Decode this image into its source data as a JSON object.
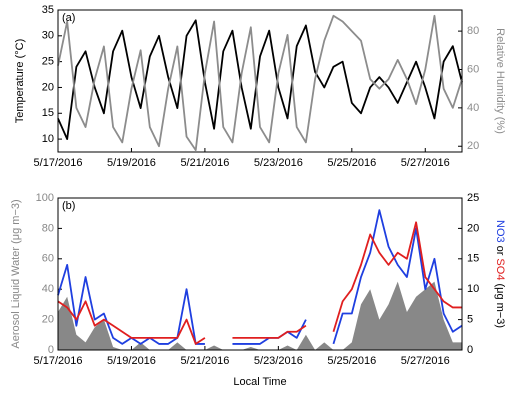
{
  "chart_data": [
    {
      "type": "line",
      "panel_label": "(a)",
      "ylabel": "Temperature (°C)",
      "y2label": "Relative Humidity (%)",
      "x": [
        "2016-05-17T00:00",
        "2016-05-17T06:00",
        "2016-05-17T12:00",
        "2016-05-17T18:00",
        "2016-05-18T00:00",
        "2016-05-18T06:00",
        "2016-05-18T12:00",
        "2016-05-18T18:00",
        "2016-05-19T00:00",
        "2016-05-19T06:00",
        "2016-05-19T12:00",
        "2016-05-19T18:00",
        "2016-05-20T00:00",
        "2016-05-20T06:00",
        "2016-05-20T12:00",
        "2016-05-20T18:00",
        "2016-05-21T00:00",
        "2016-05-21T06:00",
        "2016-05-21T12:00",
        "2016-05-21T18:00",
        "2016-05-22T00:00",
        "2016-05-22T06:00",
        "2016-05-22T12:00",
        "2016-05-22T18:00",
        "2016-05-23T00:00",
        "2016-05-23T06:00",
        "2016-05-23T12:00",
        "2016-05-23T18:00",
        "2016-05-24T00:00",
        "2016-05-24T06:00",
        "2016-05-24T12:00",
        "2016-05-24T18:00",
        "2016-05-25T00:00",
        "2016-05-25T06:00",
        "2016-05-25T12:00",
        "2016-05-25T18:00",
        "2016-05-26T00:00",
        "2016-05-26T06:00",
        "2016-05-26T12:00",
        "2016-05-26T18:00",
        "2016-05-27T00:00",
        "2016-05-27T06:00",
        "2016-05-27T12:00",
        "2016-05-27T18:00",
        "2016-05-28T00:00"
      ],
      "series": [
        {
          "name": "Temperature",
          "color": "#000000",
          "axis": "y",
          "values": [
            14,
            10,
            24,
            27,
            20,
            15,
            27,
            31,
            22,
            16,
            26,
            30,
            22,
            16,
            30,
            33,
            21,
            12,
            27,
            31,
            20,
            12,
            26,
            31,
            20,
            14,
            28,
            32,
            23,
            20,
            24,
            25,
            17,
            15,
            20,
            22,
            20,
            17,
            21,
            25,
            20,
            14,
            25,
            28,
            21
          ]
        },
        {
          "name": "Relative Humidity",
          "color": "#8c8c8c",
          "axis": "y2",
          "values": [
            62,
            85,
            40,
            30,
            55,
            72,
            30,
            22,
            50,
            70,
            30,
            20,
            50,
            72,
            25,
            18,
            58,
            85,
            30,
            22,
            58,
            82,
            30,
            22,
            58,
            78,
            30,
            22,
            55,
            75,
            88,
            85,
            80,
            75,
            55,
            50,
            55,
            65,
            55,
            42,
            60,
            88,
            50,
            40,
            55
          ]
        }
      ],
      "xlim": [
        "2016-05-17T00:00",
        "2016-05-28T00:00"
      ],
      "xticks": [
        {
          "value": "2016-05-17T00:00",
          "label": "5/17/2016"
        },
        {
          "value": "2016-05-19T00:00",
          "label": "5/19/2016"
        },
        {
          "value": "2016-05-21T00:00",
          "label": "5/21/2016"
        },
        {
          "value": "2016-05-23T00:00",
          "label": "5/23/2016"
        },
        {
          "value": "2016-05-25T00:00",
          "label": "5/25/2016"
        },
        {
          "value": "2016-05-27T00:00",
          "label": "5/27/2016"
        }
      ],
      "ylim": [
        7.5,
        35
      ],
      "yticks": [
        10,
        15,
        20,
        25,
        30,
        35
      ],
      "y2lim": [
        17,
        91
      ],
      "y2ticks": [
        20,
        40,
        60,
        80
      ]
    },
    {
      "type": "line",
      "panel_label": "(b)",
      "ylabel": "Aerosol Liquid Water (μg m−3)",
      "xlabel": "Local Time",
      "y2label_or": "or",
      "y2label_unit": "(μg m−3)",
      "x": [
        "2016-05-17T00:00",
        "2016-05-17T06:00",
        "2016-05-17T12:00",
        "2016-05-17T18:00",
        "2016-05-18T00:00",
        "2016-05-18T06:00",
        "2016-05-18T12:00",
        "2016-05-18T18:00",
        "2016-05-19T00:00",
        "2016-05-19T06:00",
        "2016-05-19T12:00",
        "2016-05-19T18:00",
        "2016-05-20T00:00",
        "2016-05-20T06:00",
        "2016-05-20T12:00",
        "2016-05-20T18:00",
        "2016-05-21T00:00",
        "2016-05-21T06:00",
        "2016-05-21T12:00",
        "2016-05-21T18:00",
        "2016-05-22T00:00",
        "2016-05-22T06:00",
        "2016-05-22T12:00",
        "2016-05-22T18:00",
        "2016-05-23T00:00",
        "2016-05-23T06:00",
        "2016-05-23T12:00",
        "2016-05-23T18:00",
        "2016-05-24T00:00",
        "2016-05-24T06:00",
        "2016-05-24T12:00",
        "2016-05-24T18:00",
        "2016-05-25T00:00",
        "2016-05-25T06:00",
        "2016-05-25T12:00",
        "2016-05-25T18:00",
        "2016-05-26T00:00",
        "2016-05-26T06:00",
        "2016-05-26T12:00",
        "2016-05-26T18:00",
        "2016-05-27T00:00",
        "2016-05-27T06:00",
        "2016-05-27T12:00",
        "2016-05-27T18:00",
        "2016-05-28T00:00"
      ],
      "series": [
        {
          "name": "Aerosol Liquid Water",
          "color": "#888888",
          "axis": "y",
          "area": true,
          "values": [
            25,
            35,
            10,
            5,
            15,
            20,
            2,
            0,
            0,
            5,
            0,
            0,
            0,
            5,
            0,
            0,
            0,
            3,
            0,
            0,
            0,
            2,
            0,
            0,
            0,
            3,
            0,
            10,
            0,
            5,
            0,
            0,
            5,
            30,
            40,
            20,
            30,
            45,
            25,
            35,
            40,
            45,
            20,
            5,
            5
          ]
        },
        {
          "name": "NO3",
          "color": "#1f3fe0",
          "axis": "y2",
          "values": [
            9,
            14,
            4,
            12,
            5,
            6,
            2,
            1,
            2,
            1,
            2,
            1,
            1,
            2,
            10,
            1,
            1,
            null,
            null,
            1,
            1,
            1,
            1,
            2,
            2,
            3,
            2,
            5,
            null,
            null,
            1,
            6,
            6,
            12,
            16,
            23,
            17,
            14,
            12,
            20,
            10,
            15,
            6,
            3,
            4
          ]
        },
        {
          "name": "SO4",
          "color": "#e01f1f",
          "axis": "y2",
          "values": [
            8,
            7,
            5,
            8,
            4,
            5,
            4,
            3,
            2,
            2,
            2,
            2,
            2,
            2,
            5,
            1,
            2,
            null,
            null,
            2,
            2,
            2,
            2,
            2,
            2,
            3,
            3,
            4,
            null,
            null,
            3,
            8,
            10,
            14,
            19,
            16,
            14,
            16,
            15,
            21,
            12,
            10,
            8,
            7,
            7
          ]
        }
      ],
      "xlim": [
        "2016-05-17T00:00",
        "2016-05-28T00:00"
      ],
      "xticks": [
        {
          "value": "2016-05-17T00:00",
          "label": "5/17/2016"
        },
        {
          "value": "2016-05-19T00:00",
          "label": "5/19/2016"
        },
        {
          "value": "2016-05-21T00:00",
          "label": "5/21/2016"
        },
        {
          "value": "2016-05-23T00:00",
          "label": "5/23/2016"
        },
        {
          "value": "2016-05-25T00:00",
          "label": "5/25/2016"
        },
        {
          "value": "2016-05-27T00:00",
          "label": "5/27/2016"
        }
      ],
      "ylim": [
        0,
        100
      ],
      "yticks": [
        0,
        20,
        40,
        60,
        80,
        100
      ],
      "y2lim": [
        0,
        25
      ],
      "y2ticks": [
        0,
        5,
        10,
        15,
        20,
        25
      ]
    }
  ]
}
